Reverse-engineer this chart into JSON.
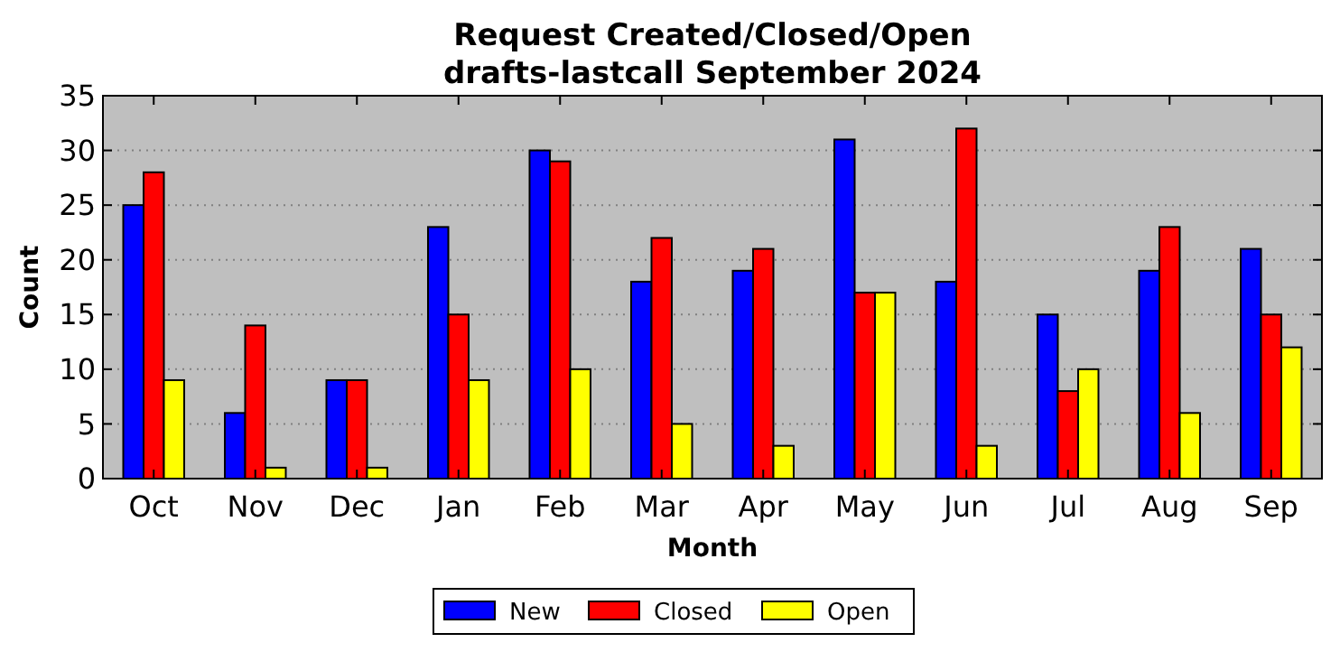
{
  "chart_data": {
    "type": "bar",
    "title": "Request Created/Closed/Open\ndrafts-lastcall September 2024",
    "xlabel": "Month",
    "ylabel": "Count",
    "categories": [
      "Oct",
      "Nov",
      "Dec",
      "Jan",
      "Feb",
      "Mar",
      "Apr",
      "May",
      "Jun",
      "Jul",
      "Aug",
      "Sep"
    ],
    "series": [
      {
        "name": "New",
        "color": "#0000ff",
        "values": [
          25,
          6,
          9,
          23,
          30,
          18,
          19,
          31,
          18,
          15,
          19,
          21
        ]
      },
      {
        "name": "Closed",
        "color": "#ff0000",
        "values": [
          28,
          14,
          9,
          15,
          29,
          22,
          21,
          17,
          32,
          8,
          23,
          15
        ]
      },
      {
        "name": "Open",
        "color": "#ffff00",
        "values": [
          9,
          1,
          1,
          9,
          10,
          5,
          3,
          17,
          3,
          10,
          6,
          12
        ]
      }
    ],
    "ylim": [
      0,
      35
    ],
    "yticks": [
      0,
      5,
      10,
      15,
      20,
      25,
      30,
      35
    ],
    "grid": "y",
    "legend": "bottom"
  }
}
